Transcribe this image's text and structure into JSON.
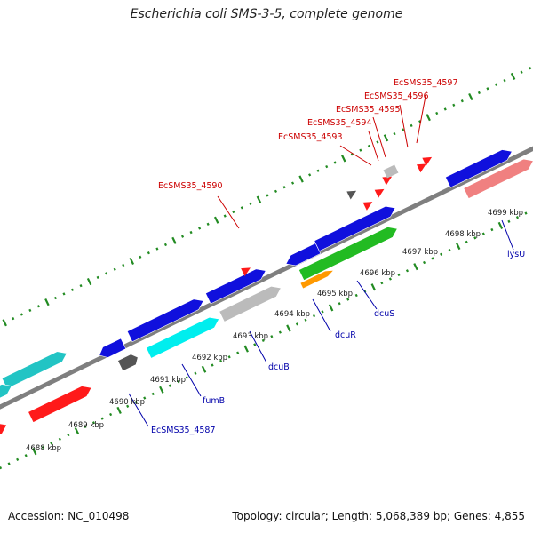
{
  "title": "Escherichia coli SMS-3-5, complete genome",
  "footer": {
    "accession": "Accession: NC_010498",
    "summary": "Topology: circular; Length: 5,068,389 bp; Genes: 4,855"
  },
  "colors": {
    "backbone": "#7f7f7f",
    "tick": "#228b22",
    "red_label": "#cc0000",
    "blue_label": "#0000aa",
    "feature_blue": "#1010dd",
    "feature_red": "#ff1a1a",
    "feature_cyan": "#00eeee",
    "feature_dark_cyan": "#22c4c4",
    "feature_gray": "#bbbbbb",
    "feature_dark_gray": "#555555",
    "feature_green": "#22bb22",
    "feature_orange": "#ff9900",
    "feature_pink": "#f08080"
  },
  "scale_labels": [
    "4688 kbp",
    "4689 kbp",
    "4690 kbp",
    "4691 kbp",
    "4692 kbp",
    "4693 kbp",
    "4694 kbp",
    "4695 kbp",
    "4696 kbp",
    "4697 kbp",
    "4698 kbp",
    "4699 kbp"
  ],
  "gene_labels": {
    "top": [
      "EcSMS35_4590",
      "EcSMS35_4593",
      "EcSMS35_4594",
      "EcSMS35_4595",
      "EcSMS35_4596",
      "EcSMS35_4597"
    ],
    "bottom": [
      "EcSMS35_4587",
      "fumB",
      "dcuB",
      "dcuR",
      "dcuS",
      "lysU"
    ]
  }
}
